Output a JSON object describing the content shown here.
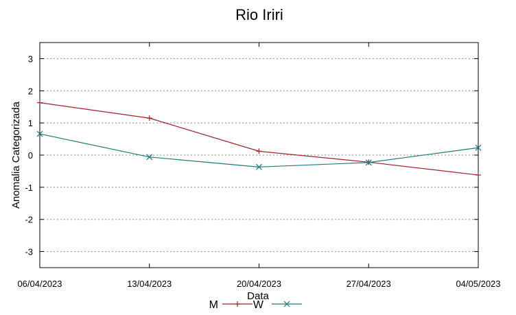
{
  "chart_data": {
    "type": "line",
    "title": "Rio Iriri",
    "xlabel": "Data",
    "ylabel": "Anomalia Categorizada",
    "x": [
      "06/04/2023",
      "13/04/2023",
      "20/04/2023",
      "27/04/2023",
      "04/05/2023"
    ],
    "ylim": [
      -3.5,
      3.5
    ],
    "yticks": [
      "3",
      "2",
      "1",
      "0",
      "-1",
      "-2",
      "-3"
    ],
    "grid": true,
    "legend": "bottom-center",
    "series": [
      {
        "name": "M",
        "color": "#a0202a",
        "marker": "plus",
        "values": [
          1.63,
          1.15,
          0.12,
          -0.22,
          -0.62
        ]
      },
      {
        "name": "W",
        "color": "#1f7a7a",
        "marker": "cross",
        "values": [
          0.66,
          -0.06,
          -0.37,
          -0.23,
          0.23
        ]
      }
    ]
  }
}
